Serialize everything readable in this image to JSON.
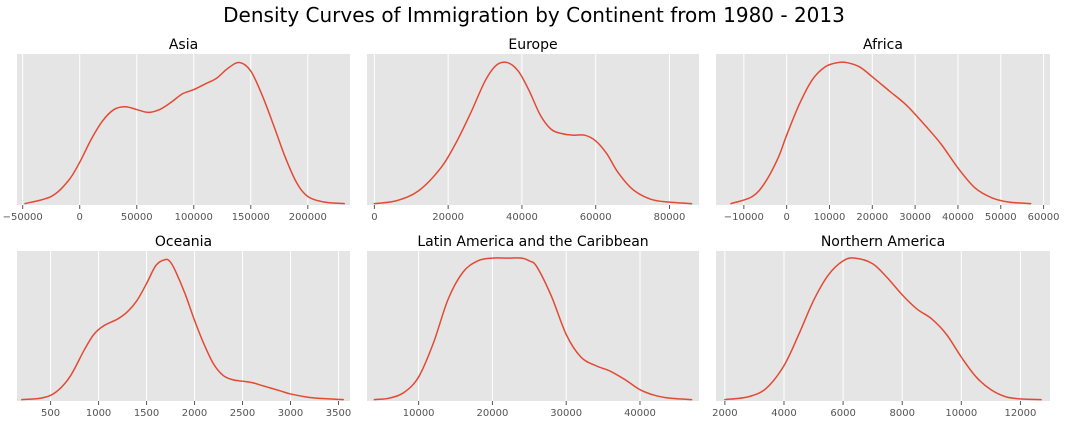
{
  "figure": {
    "title": "Density Curves of Immigration by Continent from 1980 - 2013"
  },
  "style": {
    "background": "#ffffff",
    "axes_facecolor": "#e5e5e5",
    "grid_color": "#ffffff",
    "line_color": "#e24a33",
    "tick_color": "#555555"
  },
  "chart_data": [
    {
      "type": "line",
      "title": "Asia",
      "xlabel": "",
      "ylabel": "",
      "xlim": [
        -55000,
        237000
      ],
      "xticks": [
        -50000,
        0,
        50000,
        100000,
        150000,
        200000
      ],
      "xtick_labels": [
        "−50000",
        "0",
        "50000",
        "100000",
        "150000",
        "200000"
      ],
      "grid": true,
      "y_ticks_visible": false,
      "series": [
        {
          "x": [
            -48000,
            -25000,
            -10000,
            0,
            10000,
            20000,
            30000,
            40000,
            50000,
            60000,
            70000,
            80000,
            90000,
            100000,
            110000,
            120000,
            130000,
            140000,
            150000,
            160000,
            170000,
            180000,
            190000,
            200000,
            215000,
            232000
          ],
          "y": [
            0.0,
            0.05,
            0.16,
            0.29,
            0.45,
            0.58,
            0.66,
            0.68,
            0.66,
            0.64,
            0.66,
            0.71,
            0.77,
            0.8,
            0.84,
            0.88,
            0.95,
            0.99,
            0.93,
            0.76,
            0.55,
            0.33,
            0.15,
            0.05,
            0.01,
            0.0
          ]
        }
      ]
    },
    {
      "type": "line",
      "title": "Europe",
      "xlabel": "",
      "ylabel": "",
      "xlim": [
        -2000,
        88000
      ],
      "xticks": [
        0,
        20000,
        40000,
        60000,
        80000
      ],
      "xtick_labels": [
        "0",
        "20000",
        "40000",
        "60000",
        "80000"
      ],
      "grid": true,
      "y_ticks_visible": false,
      "series": [
        {
          "x": [
            0,
            6000,
            12000,
            18000,
            22000,
            26000,
            30000,
            33000,
            36000,
            39000,
            42000,
            45000,
            48000,
            51000,
            54000,
            57000,
            60000,
            63000,
            66000,
            70000,
            75000,
            80000,
            86000
          ],
          "y": [
            0.0,
            0.02,
            0.09,
            0.25,
            0.42,
            0.63,
            0.86,
            0.97,
            0.99,
            0.93,
            0.79,
            0.62,
            0.52,
            0.49,
            0.48,
            0.48,
            0.44,
            0.35,
            0.22,
            0.1,
            0.03,
            0.01,
            0.0
          ]
        }
      ]
    },
    {
      "type": "line",
      "title": "Africa",
      "xlabel": "",
      "ylabel": "",
      "xlim": [
        -16500,
        61500
      ],
      "xticks": [
        -10000,
        0,
        10000,
        20000,
        30000,
        40000,
        50000,
        60000
      ],
      "xtick_labels": [
        "−10000",
        "0",
        "10000",
        "20000",
        "30000",
        "40000",
        "50000",
        "60000"
      ],
      "grid": true,
      "y_ticks_visible": false,
      "series": [
        {
          "x": [
            -13000,
            -8000,
            -5000,
            -2000,
            0,
            3000,
            6000,
            9000,
            12000,
            14000,
            17000,
            20000,
            24000,
            28000,
            32000,
            36000,
            40000,
            44000,
            48000,
            52000,
            57000
          ],
          "y": [
            0.0,
            0.05,
            0.15,
            0.32,
            0.48,
            0.7,
            0.87,
            0.96,
            0.99,
            0.99,
            0.96,
            0.89,
            0.79,
            0.69,
            0.56,
            0.42,
            0.25,
            0.11,
            0.04,
            0.01,
            0.0
          ]
        }
      ]
    },
    {
      "type": "line",
      "title": "Oceania",
      "xlabel": "",
      "ylabel": "",
      "xlim": [
        150,
        3620
      ],
      "xticks": [
        500,
        1000,
        1500,
        2000,
        2500,
        3000,
        3500
      ],
      "xtick_labels": [
        "500",
        "1000",
        "1500",
        "2000",
        "2500",
        "3000",
        "3500"
      ],
      "grid": true,
      "y_ticks_visible": false,
      "series": [
        {
          "x": [
            200,
            400,
            550,
            700,
            850,
            950,
            1050,
            1200,
            1300,
            1400,
            1500,
            1600,
            1700,
            1750,
            1800,
            1900,
            2000,
            2100,
            2200,
            2300,
            2400,
            2500,
            2600,
            2700,
            2800,
            2900,
            3000,
            3200,
            3400,
            3550
          ],
          "y": [
            0.0,
            0.01,
            0.05,
            0.16,
            0.35,
            0.46,
            0.52,
            0.57,
            0.62,
            0.7,
            0.82,
            0.95,
            0.99,
            0.97,
            0.91,
            0.75,
            0.56,
            0.39,
            0.25,
            0.17,
            0.14,
            0.13,
            0.12,
            0.1,
            0.08,
            0.06,
            0.04,
            0.015,
            0.005,
            0.0
          ]
        }
      ]
    },
    {
      "type": "line",
      "title": "Latin America and the Caribbean",
      "xlabel": "",
      "ylabel": "",
      "xlim": [
        3000,
        48000
      ],
      "xticks": [
        10000,
        20000,
        30000,
        40000
      ],
      "xtick_labels": [
        "10000",
        "20000",
        "30000",
        "40000"
      ],
      "grid": true,
      "y_ticks_visible": false,
      "series": [
        {
          "x": [
            4000,
            6000,
            8000,
            10000,
            12000,
            14000,
            16000,
            18000,
            20000,
            22000,
            24000,
            25000,
            26000,
            28000,
            30000,
            32000,
            34000,
            36000,
            38000,
            40000,
            42000,
            44000,
            47000
          ],
          "y": [
            0.0,
            0.01,
            0.05,
            0.16,
            0.4,
            0.71,
            0.9,
            0.98,
            1.0,
            1.0,
            1.0,
            0.98,
            0.94,
            0.73,
            0.46,
            0.3,
            0.24,
            0.2,
            0.14,
            0.07,
            0.03,
            0.01,
            0.0
          ]
        }
      ]
    },
    {
      "type": "line",
      "title": "Northern America",
      "xlabel": "",
      "ylabel": "",
      "xlim": [
        1700,
        13000
      ],
      "xticks": [
        2000,
        4000,
        6000,
        8000,
        10000,
        12000
      ],
      "xtick_labels": [
        "2000",
        "4000",
        "6000",
        "8000",
        "10000",
        "12000"
      ],
      "grid": true,
      "y_ticks_visible": false,
      "series": [
        {
          "x": [
            2000,
            2800,
            3400,
            4000,
            4500,
            5000,
            5500,
            6000,
            6400,
            7000,
            7500,
            8000,
            8500,
            9000,
            9500,
            10000,
            10500,
            11000,
            11500,
            12000,
            12700
          ],
          "y": [
            0.0,
            0.02,
            0.08,
            0.24,
            0.46,
            0.7,
            0.88,
            0.98,
            1.0,
            0.96,
            0.86,
            0.74,
            0.64,
            0.57,
            0.46,
            0.3,
            0.16,
            0.07,
            0.02,
            0.005,
            0.0
          ]
        }
      ]
    }
  ]
}
